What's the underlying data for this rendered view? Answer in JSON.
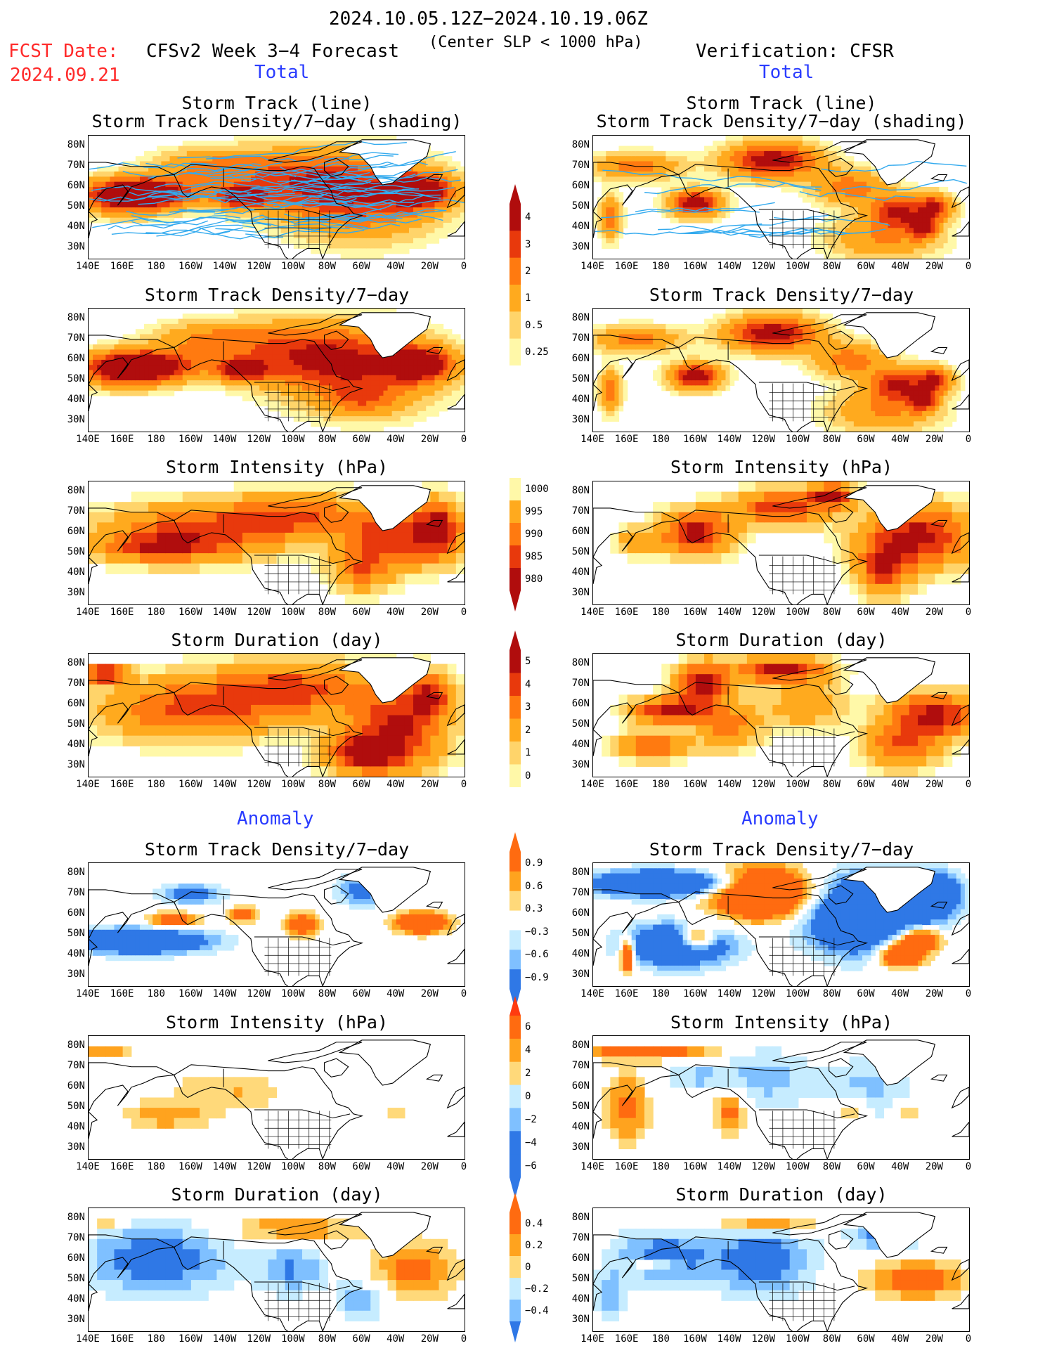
{
  "header": {
    "period": "2024.10.05.12Z−2024.10.19.06Z",
    "fcst_label": "FCST Date:",
    "fcst_date": "2024.09.21",
    "model": "CFSv2 Week 3−4 Forecast",
    "criterion": "(Center SLP < 1000 hPa)",
    "verification": "Verification: CFSR",
    "total_left": "Total",
    "total_right": "Total",
    "anomaly_left": "Anomaly",
    "anomaly_right": "Anomaly"
  },
  "panel_titles": {
    "track_line": "Storm Track (line)",
    "track_shading": "Storm Track Density/7−day (shading)",
    "density": "Storm Track Density/7−day",
    "intensity": "Storm Intensity (hPa)",
    "duration": "Storm Duration (day)"
  },
  "lat_labels": [
    "80N",
    "70N",
    "60N",
    "50N",
    "40N",
    "30N"
  ],
  "lon_labels": [
    "140E",
    "160E",
    "180",
    "160W",
    "140W",
    "120W",
    "100W",
    "80W",
    "60W",
    "40W",
    "20W",
    "0"
  ],
  "colorbars": {
    "density_total": [
      "4",
      "3",
      "2",
      "1",
      "0.5",
      "0.25"
    ],
    "intensity_total": [
      "1000",
      "995",
      "990",
      "985",
      "980"
    ],
    "duration_total": [
      "5",
      "4",
      "3",
      "2",
      "1",
      "0"
    ],
    "density_anom": [
      "0.9",
      "0.6",
      "0.3",
      "−0.3",
      "−0.6",
      "−0.9"
    ],
    "intensity_anom": [
      "6",
      "4",
      "2",
      "0",
      "−2",
      "−4",
      "−6"
    ],
    "duration_anom": [
      "0.4",
      "0.2",
      "0",
      "−0.2",
      "−0.4"
    ]
  },
  "colors": {
    "seq": [
      "#fff8a8",
      "#ffd46a",
      "#ffaa1e",
      "#ff7a10",
      "#e8390c",
      "#b00d0d"
    ],
    "div_pos": [
      "#ffd97a",
      "#ffa31e",
      "#ff6b10"
    ],
    "div_neg": [
      "#c6ecff",
      "#7fc0ff",
      "#2f78e6"
    ],
    "track": "#33aaee",
    "title_red": "#ff2a2a",
    "title_blue": "#2a3cff"
  }
}
